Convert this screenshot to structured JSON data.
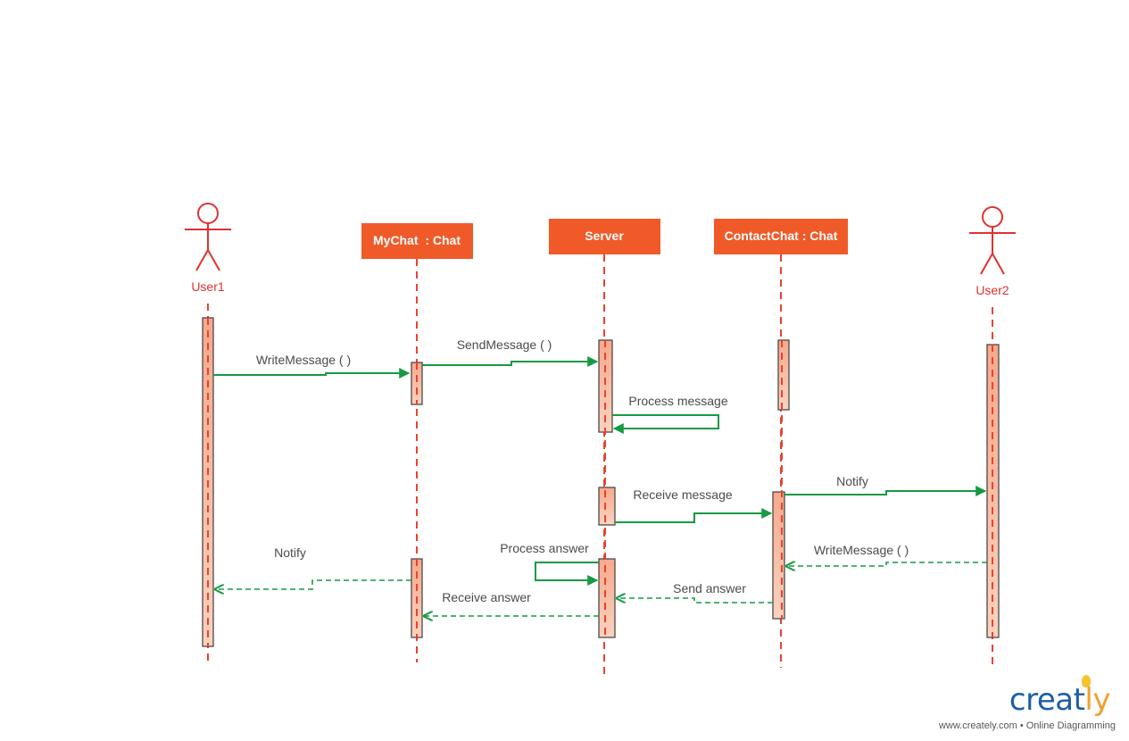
{
  "participants": {
    "user1": "User1",
    "mychat": "MyChat  : Chat",
    "server": "Server",
    "contactchat": "ContactChat : Chat",
    "user2": "User2"
  },
  "messages": {
    "write_message_1": "WriteMessage ( )",
    "send_message": "SendMessage ( )",
    "process_message": "Process message",
    "receive_message": "Receive message",
    "notify_user2": "Notify",
    "process_answer": "Process answer",
    "write_message_2": "WriteMessage ( )",
    "send_answer": "Send answer",
    "receive_answer": "Receive answer",
    "notify_user1": "Notify"
  },
  "colors": {
    "object_fill": "#f05a28",
    "actor": "#e0312f",
    "lifeline": "#e8432f",
    "message": "#169a43",
    "activation_top": "#f7a98c",
    "activation_bottom": "#fad2bf"
  },
  "branding": {
    "logo_main": "creat",
    "logo_accent": "ly",
    "logo_e": "e",
    "tagline": "www.creately.com • Online Diagramming"
  }
}
